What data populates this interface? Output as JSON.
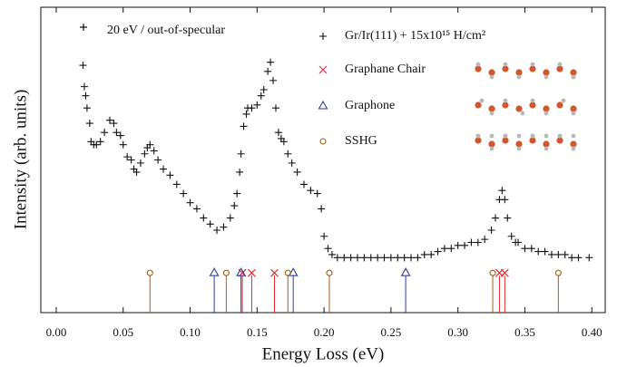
{
  "chart_data": {
    "type": "scatter",
    "xlabel": "Energy Loss (eV)",
    "ylabel": "Intensity (arb. units)",
    "annotation": "20 eV / out-of-specular",
    "xlim": [
      -0.0115,
      0.41
    ],
    "ylim": [
      0,
      1
    ],
    "xticks": [
      {
        "value": 0,
        "label": "0.00"
      },
      {
        "value": 0.05,
        "label": "0.05"
      },
      {
        "value": 0.1,
        "label": "0.10"
      },
      {
        "value": 0.15,
        "label": "0.15"
      },
      {
        "value": 0.2,
        "label": "0.20"
      },
      {
        "value": 0.25,
        "label": "0.25"
      },
      {
        "value": 0.3,
        "label": "0.30"
      },
      {
        "value": 0.35,
        "label": "0.35"
      },
      {
        "value": 0.4,
        "label": "0.40"
      }
    ],
    "series": [
      {
        "name": "Gr/Ir(111) + 15x10¹⁵ H/cm²",
        "color": "#111111",
        "marker": "plus",
        "x": [
          0.02,
          0.021,
          0.022,
          0.023,
          0.025,
          0.026,
          0.028,
          0.03,
          0.033,
          0.036,
          0.04,
          0.043,
          0.045,
          0.048,
          0.05,
          0.053,
          0.056,
          0.058,
          0.06,
          0.063,
          0.066,
          0.068,
          0.07,
          0.073,
          0.076,
          0.08,
          0.085,
          0.09,
          0.095,
          0.1,
          0.105,
          0.11,
          0.115,
          0.12,
          0.125,
          0.13,
          0.133,
          0.135,
          0.137,
          0.138,
          0.14,
          0.142,
          0.143,
          0.146,
          0.15,
          0.153,
          0.155,
          0.158,
          0.16,
          0.162,
          0.164,
          0.166,
          0.168,
          0.17,
          0.173,
          0.176,
          0.18,
          0.185,
          0.19,
          0.195,
          0.198,
          0.2,
          0.203,
          0.206,
          0.21,
          0.215,
          0.22,
          0.225,
          0.23,
          0.235,
          0.24,
          0.245,
          0.25,
          0.255,
          0.26,
          0.265,
          0.27,
          0.275,
          0.28,
          0.285,
          0.29,
          0.295,
          0.3,
          0.305,
          0.31,
          0.315,
          0.32,
          0.325,
          0.328,
          0.331,
          0.333,
          0.335,
          0.337,
          0.34,
          0.343,
          0.345,
          0.35,
          0.355,
          0.36,
          0.365,
          0.37,
          0.375,
          0.38,
          0.385,
          0.39,
          0.398
        ],
        "values": [
          0.81,
          0.74,
          0.71,
          0.67,
          0.62,
          0.56,
          0.55,
          0.55,
          0.56,
          0.59,
          0.63,
          0.62,
          0.59,
          0.58,
          0.55,
          0.51,
          0.5,
          0.47,
          0.46,
          0.49,
          0.52,
          0.54,
          0.55,
          0.53,
          0.5,
          0.47,
          0.45,
          0.42,
          0.39,
          0.36,
          0.34,
          0.31,
          0.29,
          0.27,
          0.28,
          0.31,
          0.35,
          0.39,
          0.46,
          0.52,
          0.61,
          0.65,
          0.67,
          0.67,
          0.68,
          0.71,
          0.73,
          0.79,
          0.82,
          0.76,
          0.67,
          0.59,
          0.57,
          0.56,
          0.52,
          0.49,
          0.46,
          0.42,
          0.4,
          0.39,
          0.34,
          0.25,
          0.21,
          0.19,
          0.18,
          0.18,
          0.18,
          0.18,
          0.18,
          0.18,
          0.18,
          0.18,
          0.18,
          0.18,
          0.18,
          0.18,
          0.18,
          0.19,
          0.19,
          0.2,
          0.21,
          0.21,
          0.22,
          0.22,
          0.23,
          0.23,
          0.24,
          0.27,
          0.31,
          0.37,
          0.4,
          0.37,
          0.31,
          0.25,
          0.23,
          0.23,
          0.21,
          0.21,
          0.2,
          0.2,
          0.19,
          0.19,
          0.19,
          0.18,
          0.18,
          0.18
        ]
      },
      {
        "name": "Graphane Chair",
        "color": "#e3262a",
        "marker": "x",
        "stem": true,
        "x": [
          0.139,
          0.146,
          0.163,
          0.331,
          0.335
        ],
        "values": [
          0.13,
          0.13,
          0.13,
          0.13,
          0.13
        ]
      },
      {
        "name": "Graphone",
        "color": "#2e3e9e",
        "marker": "triangle",
        "stem": true,
        "x": [
          0.118,
          0.138,
          0.177,
          0.261
        ],
        "values": [
          0.13,
          0.13,
          0.13,
          0.13
        ]
      },
      {
        "name": "SSHG",
        "color": "#a0601a",
        "marker": "circle",
        "stem": true,
        "x": [
          0.07,
          0.127,
          0.173,
          0.204,
          0.326,
          0.375
        ],
        "values": [
          0.13,
          0.13,
          0.13,
          0.13,
          0.13,
          0.13
        ]
      }
    ]
  }
}
